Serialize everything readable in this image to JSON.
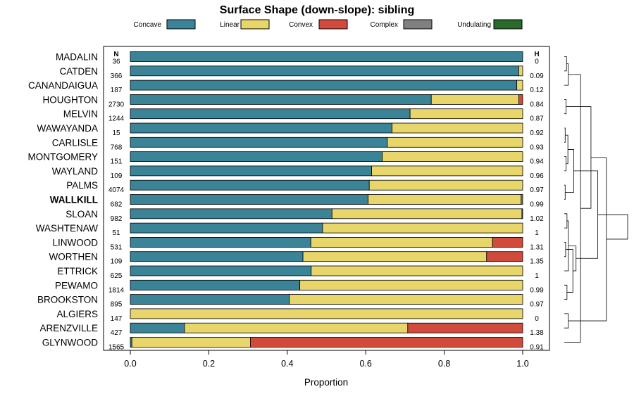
{
  "chart_data": {
    "type": "bar",
    "orientation": "horizontal",
    "stacked": true,
    "title": "Surface Shape (down-slope): sibling",
    "xlabel": "Proportion",
    "xlim": [
      0,
      1
    ],
    "x_ticks": [
      "0.0",
      "0.2",
      "0.4",
      "0.6",
      "0.8",
      "1.0"
    ],
    "n_header": "N",
    "h_header": "H",
    "legend_position": "top",
    "series": [
      {
        "name": "Concave",
        "color": "#3b8497"
      },
      {
        "name": "Linear",
        "color": "#e8d66b"
      },
      {
        "name": "Convex",
        "color": "#d04b3c"
      },
      {
        "name": "Complex",
        "color": "#808080"
      },
      {
        "name": "Undulating",
        "color": "#2a6a2a"
      }
    ],
    "rows": [
      {
        "label": "MADALIN",
        "n": "36",
        "h": "0",
        "values": [
          1.0,
          0,
          0,
          0,
          0
        ]
      },
      {
        "label": "CATDEN",
        "n": "366",
        "h": "0.09",
        "values": [
          0.99,
          0.01,
          0,
          0,
          0
        ]
      },
      {
        "label": "CANANDAIGUA",
        "n": "187",
        "h": "0.12",
        "values": [
          0.985,
          0.015,
          0,
          0,
          0
        ]
      },
      {
        "label": "HOUGHTON",
        "n": "2730",
        "h": "0.84",
        "values": [
          0.767,
          0.223,
          0.01,
          0,
          0
        ]
      },
      {
        "label": "MELVIN",
        "n": "1244",
        "h": "0.87",
        "values": [
          0.713,
          0.287,
          0,
          0,
          0
        ]
      },
      {
        "label": "WAWAYANDA",
        "n": "15",
        "h": "0.92",
        "values": [
          0.667,
          0.333,
          0,
          0,
          0
        ]
      },
      {
        "label": "CARLISLE",
        "n": "768",
        "h": "0.93",
        "values": [
          0.655,
          0.345,
          0,
          0,
          0
        ]
      },
      {
        "label": "MONTGOMERY",
        "n": "151",
        "h": "0.94",
        "values": [
          0.642,
          0.358,
          0,
          0,
          0
        ]
      },
      {
        "label": "WAYLAND",
        "n": "109",
        "h": "0.96",
        "values": [
          0.615,
          0.385,
          0,
          0,
          0
        ]
      },
      {
        "label": "PALMS",
        "n": "4074",
        "h": "0.97",
        "values": [
          0.609,
          0.391,
          0,
          0,
          0
        ]
      },
      {
        "label": "WALLKILL",
        "n": "682",
        "h": "0.99",
        "bold": true,
        "values": [
          0.606,
          0.39,
          0,
          0.004,
          0
        ]
      },
      {
        "label": "SLOAN",
        "n": "982",
        "h": "1.02",
        "values": [
          0.514,
          0.484,
          0,
          0.002,
          0
        ]
      },
      {
        "label": "WASHTENAW",
        "n": "51",
        "h": "1",
        "values": [
          0.49,
          0.51,
          0,
          0,
          0
        ]
      },
      {
        "label": "LINWOOD",
        "n": "531",
        "h": "1.31",
        "values": [
          0.46,
          0.463,
          0.077,
          0,
          0
        ]
      },
      {
        "label": "WORTHEN",
        "n": "109",
        "h": "1.35",
        "values": [
          0.44,
          0.468,
          0.092,
          0,
          0
        ]
      },
      {
        "label": "ETTRICK",
        "n": "625",
        "h": "1",
        "values": [
          0.461,
          0.539,
          0,
          0,
          0
        ]
      },
      {
        "label": "PEWAMO",
        "n": "1814",
        "h": "0.99",
        "values": [
          0.432,
          0.568,
          0,
          0,
          0
        ]
      },
      {
        "label": "BROOKSTON",
        "n": "895",
        "h": "0.97",
        "values": [
          0.405,
          0.595,
          0,
          0,
          0
        ]
      },
      {
        "label": "ALGIERS",
        "n": "147",
        "h": "0",
        "values": [
          0,
          1.0,
          0,
          0,
          0
        ]
      },
      {
        "label": "ARENZVILLE",
        "n": "427",
        "h": "1.38",
        "values": [
          0.138,
          0.569,
          0.293,
          0,
          0
        ]
      },
      {
        "label": "GLYNWOOD",
        "n": "1565",
        "h": "0.91",
        "values": [
          0.004,
          0.302,
          0.694,
          0,
          0
        ]
      }
    ],
    "dendrogram": {
      "present": true,
      "position": "right",
      "merges": [
        [
          0,
          1,
          0.5
        ],
        [
          18,
          19,
          0.9
        ],
        [
          21,
          2,
          0.9
        ],
        [
          3,
          4,
          0.4
        ],
        [
          5,
          6,
          0.2
        ],
        [
          7,
          8,
          0.4
        ],
        [
          9,
          10,
          0.2
        ],
        [
          11,
          12,
          0.6
        ],
        [
          13,
          14,
          0.3
        ],
        [
          16,
          17,
          0.6
        ],
        [
          26,
          25,
          0.8
        ],
        [
          28,
          15,
          0.9
        ],
        [
          29,
          30,
          1.9
        ],
        [
          27,
          31,
          2.1
        ],
        [
          32,
          33,
          2.6
        ],
        [
          20,
          23,
          3.6
        ],
        [
          24,
          36,
          5.9
        ],
        [
          35,
          34,
          7.4
        ],
        [
          22,
          37,
          9.3
        ],
        [
          38,
          39,
          14.0
        ]
      ]
    }
  }
}
